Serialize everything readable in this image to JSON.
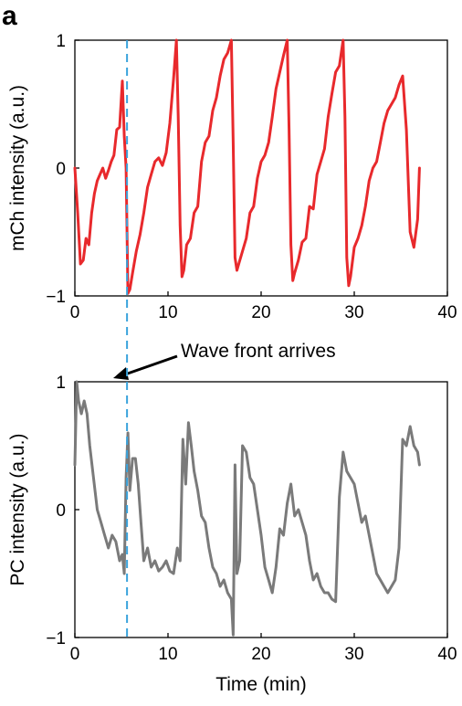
{
  "panel_label": "a",
  "annotation": {
    "text": "Wave front arrives"
  },
  "chart_data": [
    {
      "type": "line",
      "ylabel": "mCh intensity (a.u.)",
      "xlabel": "",
      "xlim": [
        0,
        40
      ],
      "ylim": [
        -1,
        1
      ],
      "xticks": [
        0,
        10,
        20,
        30,
        40
      ],
      "yticks": [
        -1,
        0,
        1
      ],
      "xtick_labels": [
        "0",
        "10",
        "20",
        "30",
        "40"
      ],
      "ytick_labels": [
        "−1",
        "0",
        "1"
      ],
      "marker_x": 5.6,
      "colors": {
        "series": "#e8292c",
        "marker": "#3aa3dc"
      },
      "series": [
        {
          "x": [
            0.0,
            0.3,
            0.6,
            0.9,
            1.2,
            1.5,
            1.8,
            2.1,
            2.4,
            2.7,
            3.0,
            3.3,
            3.6,
            3.9,
            4.2,
            4.5,
            4.8,
            5.1,
            5.3,
            5.5,
            5.7,
            5.9,
            6.2,
            6.6,
            7.0,
            7.4,
            7.8,
            8.2,
            8.6,
            9.0,
            9.4,
            9.8,
            10.2,
            10.6,
            10.9,
            11.1,
            11.3,
            11.5,
            11.7,
            12.0,
            12.4,
            12.8,
            13.2,
            13.6,
            14.0,
            14.4,
            14.8,
            15.2,
            15.6,
            16.0,
            16.4,
            16.8,
            17.0,
            17.2,
            17.4,
            17.6,
            18.0,
            18.4,
            18.8,
            19.2,
            19.6,
            20.0,
            20.4,
            20.8,
            21.2,
            21.6,
            22.0,
            22.4,
            22.8,
            23.0,
            23.2,
            23.4,
            23.6,
            24.0,
            24.4,
            24.8,
            25.2,
            25.6,
            26.0,
            26.4,
            26.8,
            27.2,
            27.6,
            28.0,
            28.4,
            28.8,
            29.0,
            29.2,
            29.4,
            29.6,
            30.0,
            30.4,
            30.8,
            31.2,
            31.6,
            32.0,
            32.4,
            32.8,
            33.2,
            33.6,
            34.0,
            34.4,
            34.8,
            35.2,
            35.6,
            36.0,
            36.4,
            36.8,
            37.0
          ],
          "y": [
            0.0,
            -0.35,
            -0.75,
            -0.72,
            -0.55,
            -0.6,
            -0.35,
            -0.2,
            -0.1,
            -0.05,
            0.0,
            -0.08,
            -0.02,
            0.05,
            0.1,
            0.3,
            0.32,
            0.68,
            0.25,
            0.0,
            -0.98,
            -0.95,
            -0.82,
            -0.65,
            -0.52,
            -0.35,
            -0.15,
            -0.05,
            0.05,
            0.08,
            0.02,
            0.12,
            0.35,
            0.7,
            1.0,
            0.4,
            -0.45,
            -0.85,
            -0.8,
            -0.6,
            -0.55,
            -0.35,
            -0.3,
            0.05,
            0.2,
            0.25,
            0.45,
            0.55,
            0.72,
            0.85,
            0.9,
            1.0,
            0.2,
            -0.7,
            -0.8,
            -0.75,
            -0.65,
            -0.55,
            -0.35,
            -0.3,
            -0.08,
            0.05,
            0.1,
            0.2,
            0.4,
            0.62,
            0.75,
            0.88,
            1.0,
            0.3,
            -0.6,
            -0.88,
            -0.82,
            -0.72,
            -0.58,
            -0.55,
            -0.3,
            -0.32,
            -0.05,
            0.05,
            0.15,
            0.4,
            0.58,
            0.75,
            0.8,
            1.0,
            0.4,
            -0.7,
            -0.92,
            -0.85,
            -0.62,
            -0.55,
            -0.45,
            -0.3,
            -0.1,
            0.0,
            0.05,
            0.2,
            0.35,
            0.45,
            0.5,
            0.55,
            0.65,
            0.72,
            0.3,
            -0.5,
            -0.62,
            -0.4,
            0.0
          ]
        }
      ]
    },
    {
      "type": "line",
      "ylabel": "PC intensity (a.u.)",
      "xlabel": "Time (min)",
      "xlim": [
        0,
        40
      ],
      "ylim": [
        -1,
        1
      ],
      "xticks": [
        0,
        10,
        20,
        30,
        40
      ],
      "yticks": [
        -1,
        0,
        1
      ],
      "xtick_labels": [
        "0",
        "10",
        "20",
        "30",
        "40"
      ],
      "ytick_labels": [
        "−1",
        "0",
        "1"
      ],
      "marker_x": 5.6,
      "colors": {
        "series": "#7a7a7a",
        "marker": "#3aa3dc"
      },
      "series": [
        {
          "x": [
            0.0,
            0.2,
            0.4,
            0.7,
            1.0,
            1.3,
            1.6,
            2.0,
            2.4,
            2.8,
            3.2,
            3.6,
            4.0,
            4.4,
            4.8,
            5.1,
            5.3,
            5.5,
            5.7,
            5.9,
            6.2,
            6.5,
            6.8,
            7.1,
            7.4,
            7.8,
            8.2,
            8.6,
            9.0,
            9.4,
            9.8,
            10.2,
            10.6,
            11.0,
            11.3,
            11.6,
            11.9,
            12.2,
            12.5,
            12.8,
            13.2,
            13.6,
            14.0,
            14.4,
            14.8,
            15.2,
            15.6,
            16.0,
            16.4,
            16.8,
            17.0,
            17.2,
            17.4,
            17.7,
            18.0,
            18.4,
            18.8,
            19.2,
            19.6,
            20.0,
            20.4,
            20.8,
            21.2,
            21.6,
            22.0,
            22.4,
            22.8,
            23.2,
            23.6,
            24.0,
            24.4,
            24.8,
            25.2,
            25.6,
            26.0,
            26.4,
            26.8,
            27.2,
            27.6,
            28.0,
            28.4,
            28.8,
            29.2,
            29.6,
            30.0,
            30.4,
            30.8,
            31.2,
            31.6,
            32.0,
            32.4,
            32.8,
            33.2,
            33.6,
            34.0,
            34.4,
            34.8,
            35.2,
            35.6,
            36.0,
            36.4,
            36.8,
            37.0
          ],
          "y": [
            0.35,
            1.0,
            0.85,
            0.75,
            0.85,
            0.75,
            0.5,
            0.25,
            0.0,
            -0.1,
            -0.2,
            -0.3,
            -0.2,
            -0.25,
            -0.4,
            -0.35,
            -0.5,
            0.25,
            0.6,
            0.15,
            0.4,
            0.4,
            0.2,
            -0.1,
            -0.4,
            -0.3,
            -0.45,
            -0.4,
            -0.48,
            -0.45,
            -0.4,
            -0.48,
            -0.5,
            -0.3,
            -0.4,
            0.55,
            0.2,
            0.68,
            0.5,
            0.3,
            0.15,
            -0.05,
            -0.1,
            -0.3,
            -0.45,
            -0.5,
            -0.6,
            -0.55,
            -0.65,
            -0.7,
            -0.98,
            0.35,
            -0.5,
            -0.4,
            0.5,
            0.45,
            0.25,
            0.2,
            0.0,
            -0.2,
            -0.45,
            -0.55,
            -0.65,
            -0.45,
            -0.15,
            -0.2,
            0.05,
            0.2,
            -0.05,
            0.0,
            -0.1,
            -0.2,
            -0.4,
            -0.55,
            -0.5,
            -0.6,
            -0.65,
            -0.65,
            -0.7,
            -0.72,
            0.1,
            0.45,
            0.3,
            0.25,
            0.2,
            0.05,
            -0.1,
            -0.05,
            -0.2,
            -0.35,
            -0.5,
            -0.55,
            -0.6,
            -0.65,
            -0.6,
            -0.55,
            -0.3,
            0.55,
            0.5,
            0.65,
            0.5,
            0.45,
            0.35
          ]
        }
      ]
    }
  ]
}
